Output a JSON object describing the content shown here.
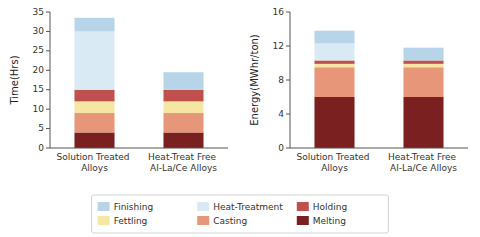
{
  "chart_data": [
    {
      "type": "bar",
      "stacked": true,
      "legend": "bottom",
      "categories": [
        "Solution Treated Alloys",
        "Heat-Treat Free Al-La/Ce Alloys"
      ],
      "series": [
        {
          "name": "Melting",
          "color": "#7b2020",
          "values": [
            4.0,
            4.0
          ]
        },
        {
          "name": "Casting",
          "color": "#e8967a",
          "values": [
            5.0,
            5.0
          ]
        },
        {
          "name": "Fettling",
          "color": "#f5e6a3",
          "values": [
            3.0,
            3.0
          ]
        },
        {
          "name": "Holding",
          "color": "#c0504d",
          "values": [
            3.0,
            3.0
          ]
        },
        {
          "name": "Heat-Treatment",
          "color": "#daeaf5",
          "values": [
            15.0,
            0.0
          ]
        },
        {
          "name": "Finishing",
          "color": "#b8d4e8",
          "values": [
            3.5,
            4.5
          ]
        }
      ],
      "y_label": "Time(Hrs)",
      "ylim": [
        0,
        35
      ],
      "yticks": [
        0,
        5,
        10,
        15,
        20,
        25,
        30,
        35
      ]
    },
    {
      "type": "bar",
      "stacked": true,
      "categories": [
        "Solution Treated Alloys",
        "Heat-Treat Free Al-La/Ce Alloys"
      ],
      "series": [
        {
          "name": "Melting",
          "color": "#7b2020",
          "values": [
            6.0,
            6.0
          ]
        },
        {
          "name": "Casting",
          "color": "#e8967a",
          "values": [
            3.5,
            3.5
          ]
        },
        {
          "name": "Fettling",
          "color": "#f5e6a3",
          "values": [
            0.4,
            0.4
          ]
        },
        {
          "name": "Holding",
          "color": "#c0504d",
          "values": [
            0.4,
            0.4
          ]
        },
        {
          "name": "Heat-Treatment",
          "color": "#daeaf5",
          "values": [
            2.0,
            0.0
          ]
        },
        {
          "name": "Finishing",
          "color": "#b8d4e8",
          "values": [
            1.5,
            1.5
          ]
        }
      ],
      "y_label": "Energy(MWhr/ton)",
      "ylim": [
        0,
        16
      ],
      "yticks": [
        0,
        4,
        8,
        12,
        16
      ]
    }
  ]
}
